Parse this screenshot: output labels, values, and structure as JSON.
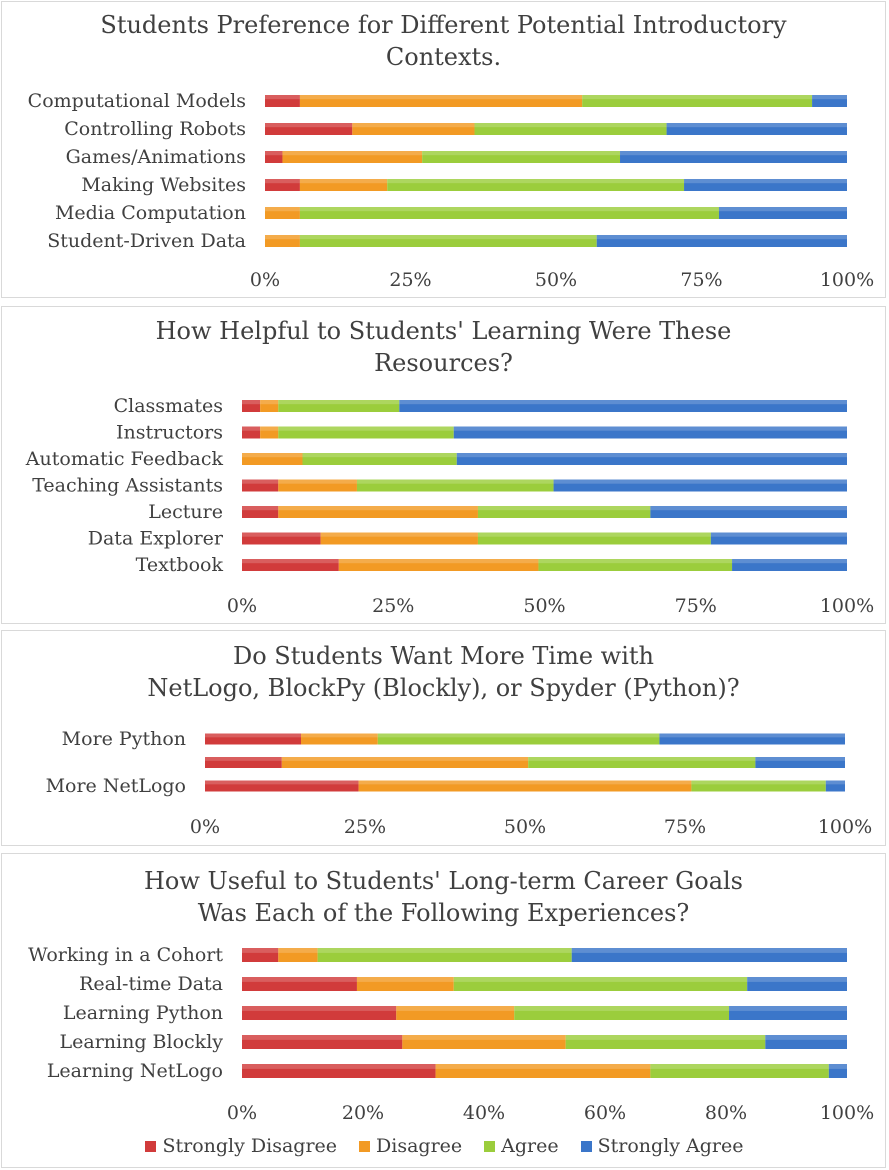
{
  "colors": {
    "Strongly Disagree": "#d13b3b",
    "Disagree": "#f29a24",
    "Agree": "#9bcd3c",
    "Strongly Agree": "#3b76c9"
  },
  "legend": [
    "Strongly Disagree",
    "Disagree",
    "Agree",
    "Strongly Agree"
  ],
  "chart_data": [
    {
      "type": "bar",
      "orientation": "horizontal",
      "stacked": "100%",
      "title_lines": [
        "Students Preference for Different Potential Introductory",
        "Contexts."
      ],
      "categories": [
        "Computational Models",
        "Controlling Robots",
        "Games/Animations",
        "Making Websites",
        "Media Computation",
        "Student-Driven Data"
      ],
      "series": [
        {
          "name": "Strongly Disagree",
          "values": [
            6,
            15,
            3,
            6,
            0,
            0
          ]
        },
        {
          "name": "Disagree",
          "values": [
            48.5,
            21,
            24,
            15,
            6,
            6
          ]
        },
        {
          "name": "Agree",
          "values": [
            39.5,
            33,
            34,
            51,
            72,
            51
          ]
        },
        {
          "name": "Strongly Agree",
          "values": [
            6,
            31,
            39,
            28,
            22,
            43
          ]
        }
      ],
      "x_ticks": [
        "0%",
        "25%",
        "50%",
        "75%",
        "100%"
      ],
      "xlim": [
        0,
        100
      ]
    },
    {
      "type": "bar",
      "orientation": "horizontal",
      "stacked": "100%",
      "title_lines": [
        "How Helpful to Students' Learning Were These",
        "Resources?"
      ],
      "categories": [
        "Classmates",
        "Instructors",
        "Automatic Feedback",
        "Teaching Assistants",
        "Lecture",
        "Data Explorer",
        "Textbook"
      ],
      "series": [
        {
          "name": "Strongly Disagree",
          "values": [
            3,
            3,
            0,
            6,
            6,
            13,
            16
          ]
        },
        {
          "name": "Disagree",
          "values": [
            3,
            3,
            10,
            13,
            33,
            26,
            33
          ]
        },
        {
          "name": "Agree",
          "values": [
            20,
            29,
            25.5,
            32.5,
            28.5,
            38.5,
            32
          ]
        },
        {
          "name": "Strongly Agree",
          "values": [
            74,
            65,
            64.5,
            48.5,
            32.5,
            22.5,
            19
          ]
        }
      ],
      "x_ticks": [
        "0%",
        "25%",
        "50%",
        "75%",
        "100%"
      ],
      "xlim": [
        0,
        100
      ]
    },
    {
      "type": "bar",
      "orientation": "horizontal",
      "stacked": "100%",
      "title_lines": [
        "Do Students Want More Time with",
        "NetLogo, BlockPy (Blockly), or Spyder (Python)?"
      ],
      "categories": [
        "More Python",
        "",
        "More NetLogo"
      ],
      "series": [
        {
          "name": "Strongly Disagree",
          "values": [
            15,
            12,
            24
          ]
        },
        {
          "name": "Disagree",
          "values": [
            12,
            38.5,
            52
          ]
        },
        {
          "name": "Agree",
          "values": [
            44,
            35.5,
            21
          ]
        },
        {
          "name": "Strongly Agree",
          "values": [
            29,
            14,
            3
          ]
        }
      ],
      "x_ticks": [
        "0%",
        "25%",
        "50%",
        "75%",
        "100%"
      ],
      "xlim": [
        0,
        100
      ]
    },
    {
      "type": "bar",
      "orientation": "horizontal",
      "stacked": "100%",
      "title_lines": [
        "How Useful to Students' Long-term Career Goals",
        "Was Each of the Following Experiences?"
      ],
      "categories": [
        "Working in a Cohort",
        "Real-time Data",
        "Learning Python",
        "Learning Blockly",
        "Learning NetLogo"
      ],
      "series": [
        {
          "name": "Strongly Disagree",
          "values": [
            6,
            19,
            25.5,
            26.5,
            32
          ]
        },
        {
          "name": "Disagree",
          "values": [
            6.5,
            16,
            19.5,
            27,
            35.5
          ]
        },
        {
          "name": "Agree",
          "values": [
            42,
            48.5,
            35.5,
            33,
            29.5
          ]
        },
        {
          "name": "Strongly Agree",
          "values": [
            45.5,
            16.5,
            19.5,
            13.5,
            3
          ]
        }
      ],
      "x_ticks": [
        "0%",
        "20%",
        "40%",
        "60%",
        "80%",
        "100%"
      ],
      "xlim": [
        0,
        100
      ]
    }
  ]
}
